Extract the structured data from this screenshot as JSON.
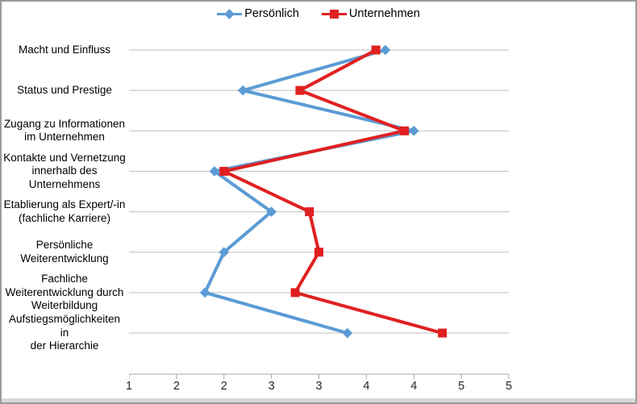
{
  "legend": {
    "position": "top-center"
  },
  "chart_data": {
    "type": "line",
    "orientation": "horizontal categories on y-axis, value axis on bottom",
    "title": "",
    "xlabel": "",
    "ylabel": "",
    "categories": [
      "Macht und Einfluss",
      "Status und Prestige",
      "Zugang zu Informationen\nim Unternehmen",
      "Kontakte und Vernetzung\ninnerhalb des\nUnternehmens",
      "Etablierung als Expert/-in\n(fachliche Karriere)",
      "Persönliche\nWeiterentwicklung",
      "Fachliche\nWeiterentwicklung durch\nWeiterbildung",
      "Aufstiegsmöglichkeiten in\nder Hierarchie"
    ],
    "series": [
      {
        "name": "Persönlich",
        "color": "#5B9BD5",
        "marker": "diamond",
        "values": [
          3.7,
          2.2,
          4.0,
          1.9,
          2.5,
          2.0,
          1.8,
          3.3
        ]
      },
      {
        "name": "Unternehmen",
        "color": "#E02020",
        "marker": "square",
        "values": [
          3.6,
          2.8,
          3.9,
          2.0,
          2.9,
          3.0,
          2.75,
          4.3
        ]
      }
    ],
    "value_axis": {
      "min": 1,
      "max": 5,
      "tick_step": 0.5,
      "tick_labels": [
        "1",
        "2",
        "2",
        "3",
        "3",
        "4",
        "4",
        "5",
        "5"
      ]
    },
    "grid": "horizontal gridlines per category, no vertical gridlines",
    "legend_position": "top",
    "colors": {
      "grid": "#BFBFBF",
      "axis": "#A6A6A6"
    }
  }
}
